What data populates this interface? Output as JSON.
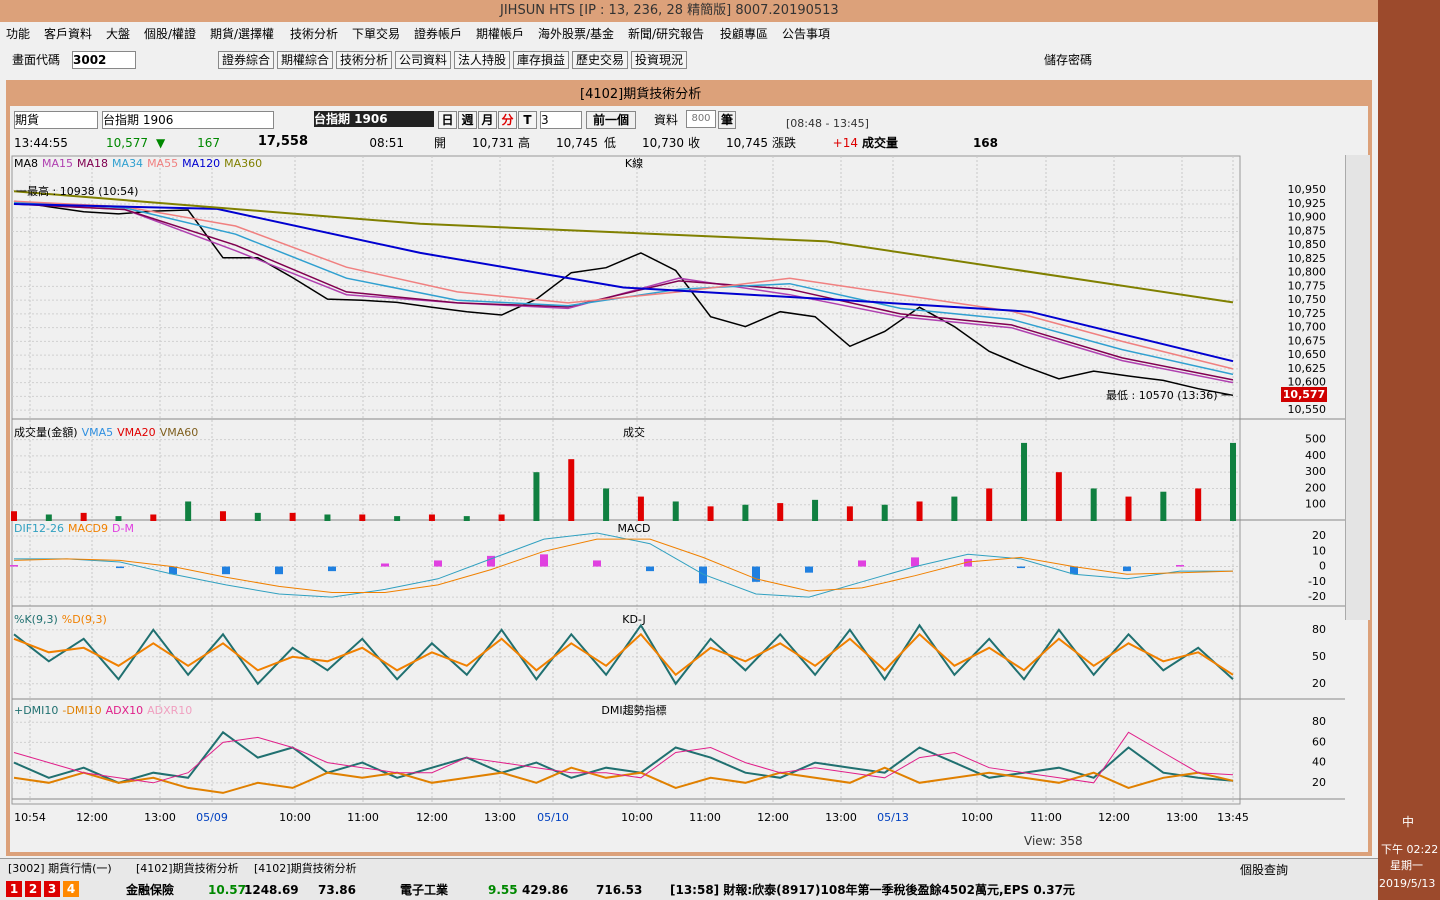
{
  "ui": {
    "title": "JIHSUN HTS     [IP : 13, 236, 28 精簡版] 8007.20190513",
    "menu": [
      "功能",
      "客戶資料",
      "大盤",
      "個股/權證",
      "期貨/選擇權",
      "技術分析",
      "下單交易",
      "證券帳戶",
      "期權帳戶",
      "海外股票/基金",
      "新聞/研究報告",
      "投顧專區",
      "公告事項"
    ],
    "toolbar": {
      "code_label": "畫面代碼",
      "code": "3002",
      "buttons": [
        "證券綜合",
        "期權綜合",
        "技術分析",
        "公司資料",
        "法人持股",
        "庫存損益",
        "歷史交易",
        "投資現況"
      ],
      "save_pw": "儲存密碼"
    },
    "window_title": "[4102]期貨技術分析",
    "controls": {
      "market": "期貨",
      "contract": "台指期 1906",
      "contract_box": "台指期 1906",
      "periods": [
        "日",
        "週",
        "月",
        "分",
        "T"
      ],
      "interval": "3",
      "prev": "前一個",
      "data_label": "資料",
      "data_count": "800",
      "data_unit": "筆",
      "session": "[08:48 - 13:45]"
    },
    "quote": {
      "time": "13:44:55",
      "price": "10,577",
      "arrow": "▼",
      "change": "167",
      "amount": "17,558",
      "qtime": "08:51",
      "open_label": "開",
      "open": "10,731",
      "high_label": "高",
      "high": "10,745",
      "low_label": "低",
      "low": "10,730",
      "close_label": "收",
      "close": "10,745",
      "chg_label": "漲跌",
      "chg": "+14",
      "vol_label": "成交量",
      "vol": "168"
    },
    "view": "View: 358",
    "tabs": [
      "[3002] 期貨行情(一)",
      "[4102]期貨技術分析",
      "[4102]期貨技術分析"
    ],
    "stock_query": "個股查詢",
    "status": {
      "pages": [
        "1",
        "2",
        "3",
        "4"
      ],
      "sector1": "金融保險",
      "s1": [
        "10.57",
        "1248.69",
        "73.86"
      ],
      "sector2": "電子工業",
      "s2": [
        "9.55",
        "429.86",
        "716.53"
      ],
      "news": "[13:58] 財報:欣泰(8917)108年第一季稅後盈餘4502萬元,EPS 0.37元"
    },
    "clock": {
      "ime": "中",
      "time": "下午 02:22",
      "day": "星期一",
      "date": "2019/5/13"
    }
  },
  "chart": {
    "times": [
      "10:54",
      "12:00",
      "13:00",
      "05/09",
      "10:00",
      "11:00",
      "12:00",
      "13:00",
      "05/10",
      "10:00",
      "11:00",
      "12:00",
      "13:00",
      "05/13",
      "10:00",
      "11:00",
      "12:00",
      "13:00",
      "13:45"
    ],
    "price": {
      "title": "K線",
      "high": "一最高 : 10938 (10:54)",
      "low": "最低 : 10570 (13:36) 一",
      "last": "10,577",
      "ylim": [
        10532,
        11005
      ],
      "yticks": [
        {
          "value": 10550,
          "label": "10,550"
        },
        {
          "value": 10575,
          "label": "10,575"
        },
        {
          "value": 10600,
          "label": "10,600"
        },
        {
          "value": 10625,
          "label": "10,625"
        },
        {
          "value": 10650,
          "label": "10,650"
        },
        {
          "value": 10675,
          "label": "10,675"
        },
        {
          "value": 10700,
          "label": "10,700"
        },
        {
          "value": 10725,
          "label": "10,725"
        },
        {
          "value": 10750,
          "label": "10,750"
        },
        {
          "value": 10775,
          "label": "10,775"
        },
        {
          "value": 10800,
          "label": "10,800"
        },
        {
          "value": 10825,
          "label": "10,825"
        },
        {
          "value": 10850,
          "label": "10,850"
        },
        {
          "value": 10875,
          "label": "10,875"
        },
        {
          "value": 10900,
          "label": "10,900"
        },
        {
          "value": 10925,
          "label": "10,925"
        },
        {
          "value": 10950,
          "label": "10,950"
        }
      ],
      "series": [
        {
          "name": "MA8",
          "color": "#000000",
          "values": [
            10930,
            10920,
            10911,
            10907,
            10912,
            10914,
            10827,
            10827,
            10791,
            10752,
            10750,
            10746,
            10737,
            10729,
            10723,
            10752,
            10800,
            10809,
            10836,
            10804,
            10720,
            10702,
            10729,
            10720,
            10666,
            10693,
            10737,
            10702,
            10657,
            10630,
            10607,
            10621,
            10612,
            10604,
            10589,
            10577
          ]
        },
        {
          "name": "MA15",
          "color": "#b040b0",
          "values": [
            10925,
            10915,
            10840,
            10760,
            10745,
            10735,
            10790,
            10760,
            10720,
            10700,
            10640,
            10600
          ]
        },
        {
          "name": "MA18",
          "color": "#800050",
          "values": [
            10925,
            10915,
            10850,
            10765,
            10745,
            10738,
            10785,
            10770,
            10725,
            10705,
            10645,
            10605
          ]
        },
        {
          "name": "MA34",
          "color": "#30a0d0",
          "values": [
            10928,
            10918,
            10870,
            10790,
            10750,
            10740,
            10770,
            10780,
            10735,
            10715,
            10660,
            10615
          ]
        },
        {
          "name": "MA55",
          "color": "#f08080",
          "values": [
            10930,
            10920,
            10885,
            10810,
            10765,
            10745,
            10765,
            10790,
            10760,
            10730,
            10675,
            10625
          ]
        },
        {
          "name": "MA120",
          "color": "#0000d0",
          "values": [
            10925,
            10916,
            10836,
            10773,
            10752,
            10729,
            10639
          ]
        },
        {
          "name": "MA360",
          "color": "#808000",
          "values": [
            10948,
            10889,
            10857,
            10746
          ]
        }
      ]
    },
    "volume": {
      "title": "成交",
      "label": "成交量(金額)",
      "ylim": [
        0,
        590
      ],
      "yticks": [
        100,
        200,
        300,
        400,
        500
      ],
      "series": [
        {
          "name": "VMA5",
          "color": "#3090e0"
        },
        {
          "name": "VMA20",
          "color": "#e00000"
        },
        {
          "name": "VMA60",
          "color": "#806020"
        }
      ],
      "color": "#e00000",
      "values": [
        60,
        40,
        50,
        30,
        40,
        120,
        60,
        50,
        50,
        40,
        40,
        30,
        40,
        30,
        40,
        300,
        380,
        200,
        150,
        120,
        90,
        100,
        110,
        130,
        90,
        100,
        120,
        150,
        200,
        480,
        300,
        200,
        150,
        180,
        200,
        480
      ]
    },
    "macd": {
      "title": "MACD",
      "ylim": [
        -26.5,
        30.5
      ],
      "yticks": [
        -20,
        -10,
        0,
        10,
        20
      ],
      "series": [
        {
          "name": "DIF12-26",
          "color": "#30a0c0",
          "values": [
            5,
            5,
            3,
            -5,
            -12,
            -18,
            -20,
            -15,
            -8,
            5,
            18,
            22,
            15,
            -5,
            -18,
            -20,
            -10,
            0,
            8,
            5,
            -5,
            -8,
            -3,
            -3
          ]
        },
        {
          "name": "MACD9",
          "color": "#f08000",
          "values": [
            4,
            5,
            4,
            0,
            -7,
            -13,
            -17,
            -17,
            -12,
            -2,
            10,
            18,
            18,
            6,
            -8,
            -16,
            -14,
            -6,
            3,
            6,
            0,
            -5,
            -4,
            -3
          ]
        },
        {
          "name": "D-M",
          "color": "#e040e0",
          "values": [
            1,
            0,
            -1,
            -5,
            -5,
            -5,
            -3,
            2,
            4,
            7,
            8,
            4,
            -3,
            -11,
            -10,
            -4,
            4,
            6,
            5,
            -1,
            -5,
            -3,
            1,
            0
          ]
        }
      ]
    },
    "kd": {
      "title": "KD-J",
      "ylim": [
        2,
        102
      ],
      "yticks": [
        20,
        50,
        80
      ],
      "series": [
        {
          "name": "%K(9,3)",
          "color": "#207070",
          "values": [
            75,
            45,
            70,
            25,
            80,
            30,
            75,
            20,
            60,
            35,
            70,
            25,
            65,
            30,
            80,
            25,
            75,
            30,
            85,
            20,
            70,
            35,
            75,
            30,
            80,
            25,
            85,
            30,
            70,
            25,
            80,
            30,
            75,
            35,
            60,
            25
          ]
        },
        {
          "name": "%D(9,3)",
          "color": "#f08000",
          "values": [
            70,
            55,
            60,
            40,
            65,
            40,
            65,
            35,
            50,
            45,
            60,
            35,
            55,
            40,
            70,
            35,
            65,
            40,
            75,
            30,
            60,
            45,
            65,
            40,
            70,
            35,
            75,
            40,
            60,
            35,
            70,
            40,
            65,
            45,
            55,
            30
          ]
        }
      ]
    },
    "dmi": {
      "title": "DMI趨勢指標",
      "ylim": [
        3,
        99
      ],
      "yticks": [
        20,
        40,
        60,
        80
      ],
      "series": [
        {
          "name": "+DMI10",
          "color": "#207070",
          "values": [
            40,
            25,
            35,
            20,
            30,
            25,
            70,
            45,
            55,
            30,
            40,
            25,
            35,
            45,
            30,
            40,
            25,
            35,
            30,
            55,
            45,
            30,
            25,
            40,
            35,
            30,
            55,
            40,
            25,
            30,
            35,
            25,
            55,
            30,
            25,
            22
          ]
        },
        {
          "name": "-DMI10",
          "color": "#e08000",
          "values": [
            25,
            20,
            30,
            20,
            25,
            15,
            10,
            20,
            15,
            30,
            25,
            30,
            20,
            25,
            30,
            20,
            35,
            25,
            30,
            15,
            25,
            20,
            30,
            25,
            20,
            35,
            20,
            25,
            30,
            25,
            20,
            30,
            15,
            25,
            30,
            22
          ]
        },
        {
          "name": "ADX10",
          "color": "#e0208a",
          "values": [
            50,
            40,
            30,
            25,
            20,
            30,
            60,
            65,
            55,
            40,
            35,
            30,
            30,
            45,
            40,
            35,
            30,
            30,
            25,
            50,
            55,
            40,
            30,
            35,
            30,
            25,
            45,
            50,
            35,
            30,
            25,
            20,
            70,
            50,
            30,
            28
          ]
        },
        {
          "name": "ADXR10",
          "color": "#f0a0c0"
        }
      ]
    }
  }
}
